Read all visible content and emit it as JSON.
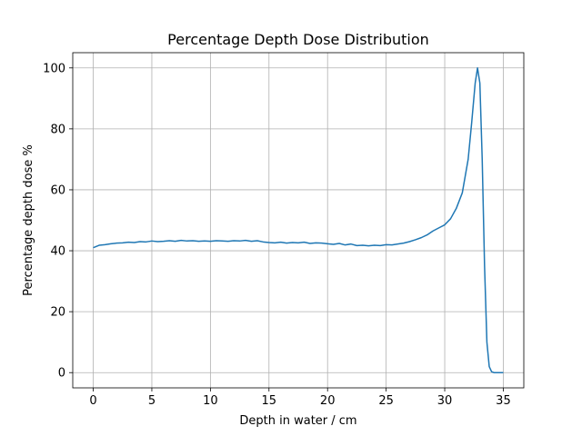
{
  "chart_data": {
    "type": "line",
    "title": "Percentage Depth Dose Distribution",
    "xlabel": "Depth in water / cm",
    "ylabel": "Percentage depth dose %",
    "xlim": [
      -1.75,
      36.75
    ],
    "ylim": [
      -5,
      105
    ],
    "xticks": [
      0,
      5,
      10,
      15,
      20,
      25,
      30,
      35
    ],
    "yticks": [
      0,
      20,
      40,
      60,
      80,
      100
    ],
    "grid": true,
    "legend": "none",
    "color": "#1f77b4",
    "series": [
      {
        "x": [
          0,
          0.5,
          1,
          1.5,
          2,
          2.5,
          3,
          3.5,
          4,
          4.5,
          5,
          5.5,
          6,
          6.5,
          7,
          7.5,
          8,
          8.5,
          9,
          9.5,
          10,
          10.5,
          11,
          11.5,
          12,
          12.5,
          13,
          13.5,
          14,
          14.5,
          15,
          15.5,
          16,
          16.5,
          17,
          17.5,
          18,
          18.5,
          19,
          19.5,
          20,
          20.5,
          21,
          21.5,
          22,
          22.5,
          23,
          23.5,
          24,
          24.5,
          25,
          25.5,
          26,
          26.5,
          27,
          27.5,
          28,
          28.5,
          29,
          29.5,
          30,
          30.5,
          31,
          31.5,
          32,
          32.3,
          32.6,
          32.8,
          33.0,
          33.2,
          33.4,
          33.6,
          33.8,
          34.0,
          34.2,
          34.5,
          35
        ],
        "y": [
          41,
          41.8,
          42,
          42.3,
          42.5,
          42.6,
          42.8,
          42.7,
          43,
          42.9,
          43.2,
          43,
          43.1,
          43.3,
          43.1,
          43.4,
          43.2,
          43.3,
          43.1,
          43.2,
          43.1,
          43.3,
          43.2,
          43.1,
          43.3,
          43.2,
          43.4,
          43.1,
          43.3,
          42.9,
          42.7,
          42.6,
          42.8,
          42.5,
          42.7,
          42.6,
          42.8,
          42.4,
          42.6,
          42.5,
          42.3,
          42.1,
          42.4,
          41.9,
          42.2,
          41.7,
          41.8,
          41.6,
          41.8,
          41.7,
          42,
          41.9,
          42.2,
          42.5,
          43,
          43.6,
          44.3,
          45.2,
          46.5,
          47.5,
          48.5,
          50.5,
          54,
          59,
          70,
          82,
          95,
          100,
          95,
          70,
          35,
          10,
          2,
          0.3,
          0,
          0,
          0
        ]
      }
    ]
  }
}
